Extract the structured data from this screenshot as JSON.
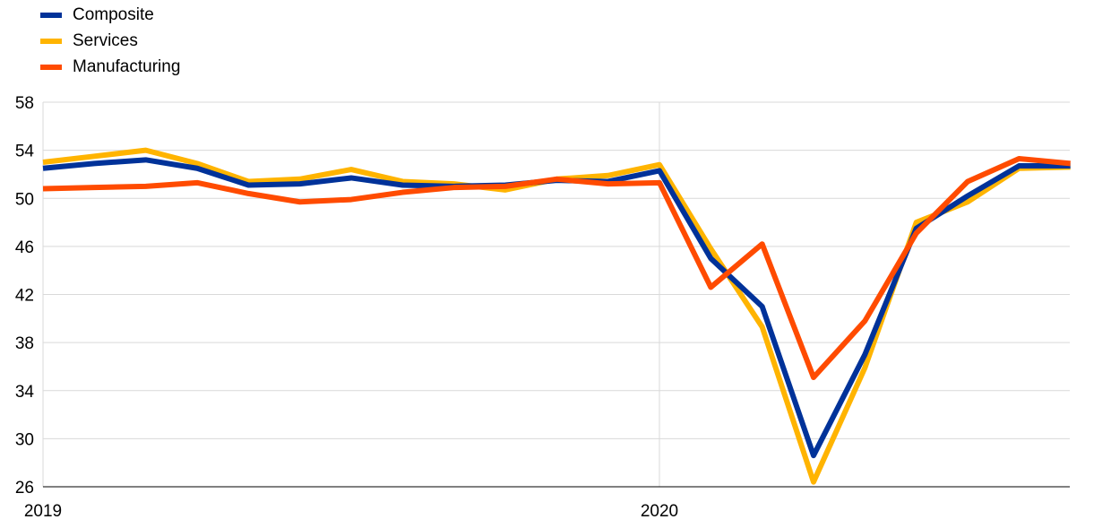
{
  "chart_data": {
    "type": "line",
    "title": "",
    "xlabel": "",
    "ylabel": "",
    "x": [
      "2019-01",
      "2019-02",
      "2019-03",
      "2019-04",
      "2019-05",
      "2019-06",
      "2019-07",
      "2019-08",
      "2019-09",
      "2019-10",
      "2019-11",
      "2019-12",
      "2020-01",
      "2020-02",
      "2020-03",
      "2020-04",
      "2020-05",
      "2020-06",
      "2020-07",
      "2020-08",
      "2020-09"
    ],
    "x_tick_labels": [
      "2019",
      "2020"
    ],
    "y_ticks": [
      26,
      30,
      34,
      38,
      42,
      46,
      50,
      54,
      58
    ],
    "ylim": [
      26,
      58
    ],
    "grid": true,
    "legend_position": "top-left",
    "series": [
      {
        "name": "Composite",
        "color": "#003299",
        "values": [
          52.5,
          52.9,
          53.2,
          52.5,
          51.1,
          51.2,
          51.7,
          51.1,
          51.0,
          51.1,
          51.5,
          51.4,
          52.3,
          45.0,
          41.0,
          28.6,
          37.0,
          47.5,
          50.2,
          52.7,
          52.7
        ]
      },
      {
        "name": "Services",
        "color": "#FFB400",
        "values": [
          53.0,
          53.5,
          54.0,
          52.9,
          51.4,
          51.6,
          52.4,
          51.4,
          51.2,
          50.7,
          51.6,
          51.9,
          52.8,
          45.8,
          39.3,
          26.4,
          35.9,
          48.0,
          49.7,
          52.5,
          52.6
        ]
      },
      {
        "name": "Manufacturing",
        "color": "#FF4B00",
        "values": [
          50.8,
          50.9,
          51.0,
          51.3,
          50.4,
          49.7,
          49.9,
          50.5,
          50.9,
          51.0,
          51.6,
          51.2,
          51.3,
          42.6,
          46.2,
          35.1,
          39.8,
          47.1,
          51.4,
          53.3,
          52.9
        ]
      }
    ]
  }
}
